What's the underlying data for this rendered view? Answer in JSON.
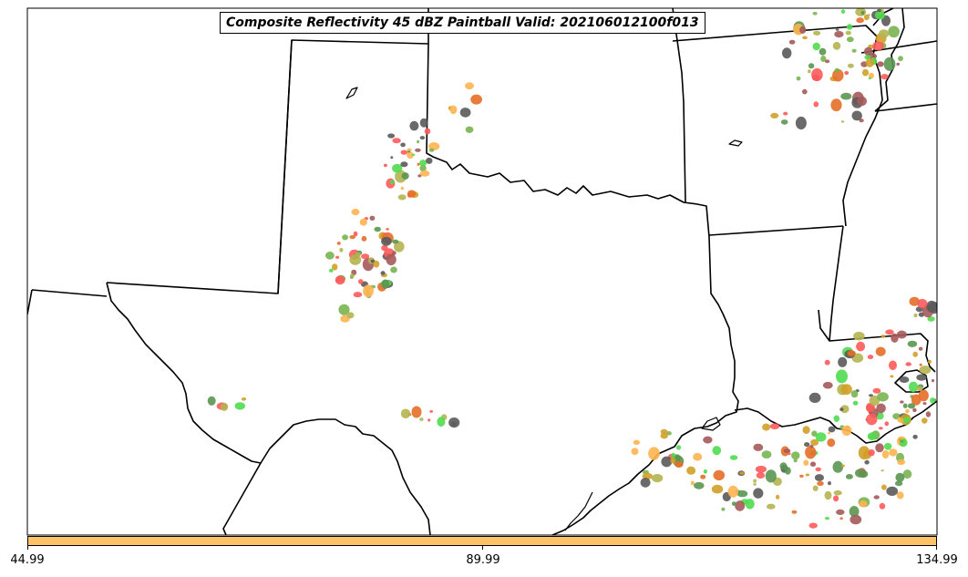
{
  "title": "Composite Reflectivity 45 dBZ Paintball Valid: 202106012100f013",
  "colorbar": {
    "color": "#ffc266",
    "ticks": [
      {
        "label": "44.99"
      },
      {
        "label": "89.99"
      },
      {
        "label": "134.99"
      }
    ]
  },
  "palette": [
    "#5a5a5a",
    "#a55a5a",
    "#5a9650",
    "#ffb450",
    "#ff5a5a",
    "#50dc50",
    "#b4b450",
    "#d2a028",
    "#e66e28",
    "#78b450"
  ]
}
